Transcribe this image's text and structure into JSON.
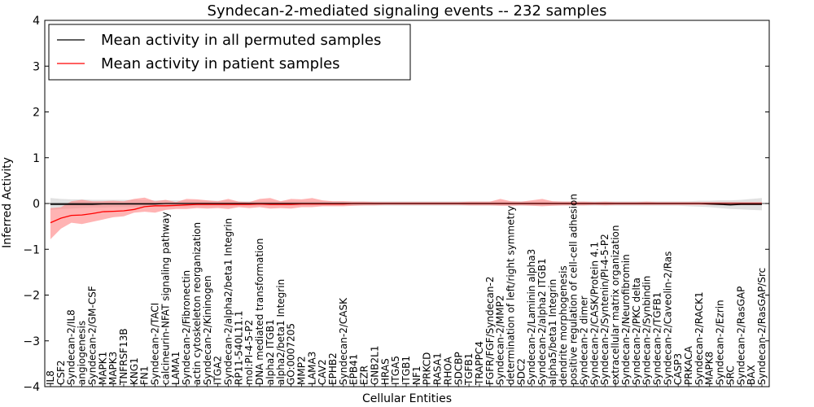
{
  "chart_data": {
    "type": "line",
    "title": "Syndecan-2-mediated signaling events -- 232 samples",
    "xlabel": "Cellular Entities",
    "ylabel": "Inferred Activity",
    "ylim": [
      -4,
      4
    ],
    "yticks": [
      -4,
      -3,
      -2,
      -1,
      0,
      1,
      2,
      3,
      4
    ],
    "yticklabels": [
      "−4",
      "−3",
      "−2",
      "−1",
      "0",
      "1",
      "2",
      "3",
      "4"
    ],
    "legend_position": "top-left",
    "categories": [
      "IL8",
      "CSF2",
      "Syndecan-2/IL8",
      "angiogenesis",
      "Syndecan-2/GM-CSF",
      "MAPK1",
      "MAPK3",
      "TNFRSF13B",
      "KNG1",
      "FN1",
      "Syndecan-2/TACI",
      "calcineurin-NFAT signaling pathway",
      "LAMA1",
      "Syndecan-2/Fibronectin",
      "actin cytoskeleton reorganization",
      "Syndecan-2/Kininogen",
      "ITGA2",
      "Syndecan-2/alpha2/beta1 Integrin",
      "RP11-540L11.1",
      "mol:PI-4-5-P2",
      "DNA mediated transformation",
      "alpha2 ITGB1",
      "alpha2/beta1 Integrin",
      "GO:0007205",
      "MMP2",
      "LAMA3",
      "CAV2",
      "EPHB2",
      "Syndecan-2/CASK",
      "EPB41",
      "EZR",
      "GNB2L1",
      "HRAS",
      "ITGA5",
      "ITGB1",
      "NF1",
      "PRKCD",
      "RASA1",
      "RHOA",
      "SDCBP",
      "TGFB1",
      "TRAPPC4",
      "FGFR/FGF/Syndecan-2",
      "Syndecan-2/MMP2",
      "determination of left/right symmetry",
      "SDC2",
      "Syndecan-2/Laminin alpha3",
      "Syndecan-2/alpha2 ITGB1",
      "alpha5/beta1 Integrin",
      "dendrite morphogenesis",
      "positive regulation of cell-cell adhesion",
      "Syndecan-2 dimer",
      "Syndecan-2/CASK/Protein 4.1",
      "Syndecan-2/Syntenin/PI-4-5-P2",
      "extracellular matrix organization",
      "Syndecan-2/Neurofibromin",
      "Syndecan-2/PKC delta",
      "Syndecan-2/Synbindin",
      "Syndecan-2/TGFB1",
      "Syndecan-2/Caveolin-2/Ras",
      "CASP3",
      "PRKACA",
      "Syndecan-2/RACK1",
      "MAPK8",
      "Syndecan-2/Ezrin",
      "SRC",
      "Syndecan-2/RasGAP",
      "BAX",
      "Syndecan-2/RasGAP/Src"
    ],
    "series": [
      {
        "name": "Mean activity in all permuted samples",
        "color": "#000000",
        "values": [
          -0.02,
          -0.02,
          -0.02,
          -0.02,
          -0.02,
          -0.01,
          -0.01,
          -0.01,
          -0.01,
          -0.01,
          -0.01,
          0,
          0,
          0,
          0,
          0,
          0,
          0,
          0,
          0,
          0,
          0,
          0,
          0,
          0,
          0,
          0,
          0,
          0,
          0,
          0,
          0,
          0,
          0,
          0,
          0,
          0,
          0,
          0,
          0,
          0,
          0,
          0,
          0,
          0,
          0,
          0,
          0,
          0,
          0,
          0,
          0,
          0,
          0,
          0,
          0,
          0,
          0,
          0,
          0,
          0,
          0,
          0,
          -0.01,
          -0.02,
          -0.03,
          -0.02,
          -0.02,
          -0.02
        ],
        "band_upper": [
          0.12,
          0.1,
          0.09,
          0.09,
          0.08,
          0.08,
          0.08,
          0.08,
          0.08,
          0.07,
          0.07,
          0.07,
          0.07,
          0.06,
          0.06,
          0.06,
          0.06,
          0.06,
          0.05,
          0.05,
          0.05,
          0.05,
          0.05,
          0.05,
          0.05,
          0.05,
          0.05,
          0.05,
          0.05,
          0.05,
          0.05,
          0.05,
          0.05,
          0.05,
          0.05,
          0.05,
          0.05,
          0.05,
          0.05,
          0.05,
          0.05,
          0.05,
          0.05,
          0.05,
          0.05,
          0.05,
          0.05,
          0.05,
          0.05,
          0.05,
          0.05,
          0.05,
          0.05,
          0.05,
          0.05,
          0.05,
          0.05,
          0.05,
          0.05,
          0.05,
          0.05,
          0.05,
          0.06,
          0.06,
          0.07,
          0.07,
          0.08,
          0.1,
          0.12
        ],
        "band_lower": [
          -0.14,
          -0.12,
          -0.11,
          -0.1,
          -0.09,
          -0.09,
          -0.08,
          -0.08,
          -0.08,
          -0.07,
          -0.07,
          -0.07,
          -0.07,
          -0.06,
          -0.06,
          -0.06,
          -0.06,
          -0.06,
          -0.05,
          -0.05,
          -0.05,
          -0.05,
          -0.05,
          -0.05,
          -0.05,
          -0.05,
          -0.05,
          -0.05,
          -0.05,
          -0.05,
          -0.05,
          -0.05,
          -0.05,
          -0.05,
          -0.05,
          -0.05,
          -0.05,
          -0.05,
          -0.05,
          -0.05,
          -0.05,
          -0.05,
          -0.05,
          -0.05,
          -0.05,
          -0.05,
          -0.05,
          -0.05,
          -0.05,
          -0.05,
          -0.05,
          -0.05,
          -0.05,
          -0.05,
          -0.05,
          -0.05,
          -0.05,
          -0.05,
          -0.05,
          -0.05,
          -0.05,
          -0.06,
          -0.07,
          -0.08,
          -0.1,
          -0.12,
          -0.13,
          -0.14,
          -0.15
        ],
        "band_color": "#c8c8c8"
      },
      {
        "name": "Mean activity in patient samples",
        "color": "#ff0000",
        "values": [
          -0.42,
          -0.32,
          -0.26,
          -0.25,
          -0.22,
          -0.18,
          -0.17,
          -0.16,
          -0.13,
          -0.07,
          -0.05,
          -0.05,
          -0.04,
          -0.03,
          -0.02,
          -0.02,
          -0.02,
          -0.02,
          -0.02,
          -0.02,
          -0.01,
          -0.02,
          -0.02,
          -0.02,
          -0.01,
          -0.01,
          -0.01,
          -0.01,
          -0.01,
          0,
          0,
          0,
          0,
          0,
          0,
          0,
          0,
          0,
          0,
          0,
          0,
          0,
          0,
          0,
          0,
          0,
          0,
          0,
          0,
          0,
          0,
          0,
          0,
          0,
          0,
          0,
          0,
          0,
          0,
          0,
          0,
          0,
          0,
          0,
          0,
          0,
          0,
          0,
          0
        ],
        "band_upper": [
          -0.1,
          -0.08,
          0.05,
          0.08,
          0.05,
          0.05,
          0.06,
          0.05,
          0.1,
          0.13,
          0.05,
          0.08,
          0.03,
          0.1,
          0.09,
          0.07,
          0.05,
          0.1,
          0.04,
          0.03,
          0.1,
          0.12,
          0.05,
          0.1,
          0.09,
          0.12,
          0.07,
          0.05,
          0.05,
          0.04,
          0.04,
          0.03,
          0.03,
          0.03,
          0.03,
          0.03,
          0.03,
          0.03,
          0.03,
          0.03,
          0.04,
          0.04,
          0.04,
          0.1,
          0.05,
          0.04,
          0.07,
          0.1,
          0.05,
          0.04,
          0.04,
          0.04,
          0.03,
          0.04,
          0.03,
          0.03,
          0.03,
          0.04,
          0.03,
          0.03,
          0.03,
          0.03,
          0.03,
          0.03,
          0.03,
          0.03,
          0.03,
          0.03,
          0.03
        ],
        "band_lower": [
          -0.78,
          -0.55,
          -0.42,
          -0.45,
          -0.4,
          -0.35,
          -0.3,
          -0.28,
          -0.2,
          -0.18,
          -0.2,
          -0.14,
          -0.12,
          -0.12,
          -0.1,
          -0.11,
          -0.1,
          -0.12,
          -0.08,
          -0.1,
          -0.08,
          -0.11,
          -0.1,
          -0.11,
          -0.08,
          -0.08,
          -0.06,
          -0.06,
          -0.06,
          -0.05,
          -0.04,
          -0.04,
          -0.03,
          -0.03,
          -0.03,
          -0.03,
          -0.03,
          -0.03,
          -0.03,
          -0.03,
          -0.04,
          -0.04,
          -0.04,
          -0.05,
          -0.05,
          -0.04,
          -0.05,
          -0.06,
          -0.05,
          -0.04,
          -0.04,
          -0.04,
          -0.03,
          -0.04,
          -0.03,
          -0.03,
          -0.03,
          -0.03,
          -0.03,
          -0.03,
          -0.03,
          -0.03,
          -0.03,
          -0.03,
          -0.03,
          -0.03,
          -0.03,
          -0.03,
          -0.03
        ],
        "band_color": "#ff8080"
      }
    ]
  }
}
